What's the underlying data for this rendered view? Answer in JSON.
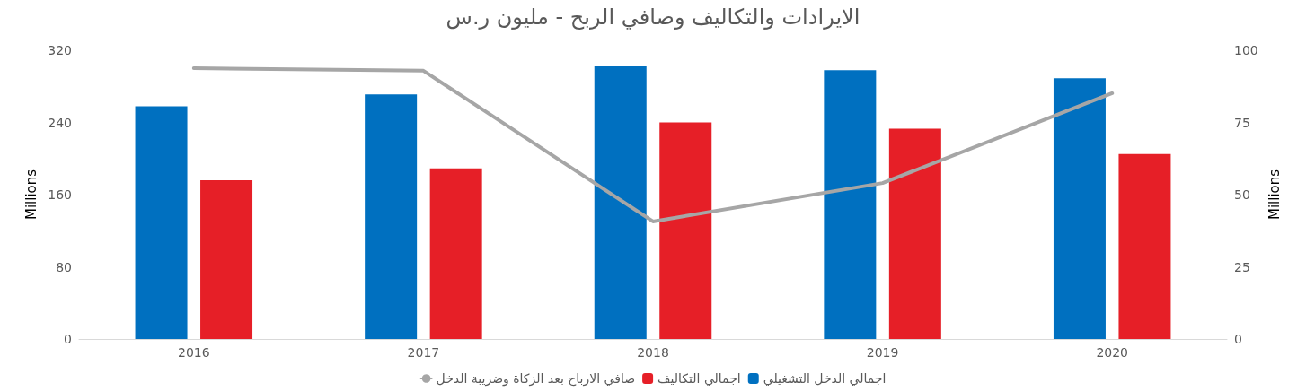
{
  "chart_data": {
    "type": "bar",
    "title": "الايرادات والتكاليف وصافي الربح - مليون ر.س",
    "ylabel": "Millions",
    "y2label": "Millions",
    "categories": [
      "2016",
      "2017",
      "2018",
      "2019",
      "2020"
    ],
    "series": [
      {
        "name": "اجمالي الدخل التشغيلي",
        "color": "#0070c0",
        "values": [
          258,
          271,
          302,
          298,
          289
        ]
      },
      {
        "name": "اجمالي التكاليف",
        "color": "#e61f27",
        "values": [
          176,
          189,
          240,
          233,
          205
        ]
      },
      {
        "name": "صافي الارباح بعد الزكاة وضريبة الدخل",
        "type": "line",
        "axis": "y2",
        "color": "#a6a6a6",
        "marker": "none",
        "values": [
          93.8,
          92.9,
          40.7,
          54,
          85.1
        ]
      }
    ],
    "ylim": [
      0,
      320
    ],
    "yticks": [
      0,
      80,
      160,
      240,
      320
    ],
    "y2lim": [
      0,
      100
    ],
    "y2ticks": [
      0,
      25,
      50,
      75,
      100
    ],
    "grid": false,
    "legend": "bottom"
  }
}
